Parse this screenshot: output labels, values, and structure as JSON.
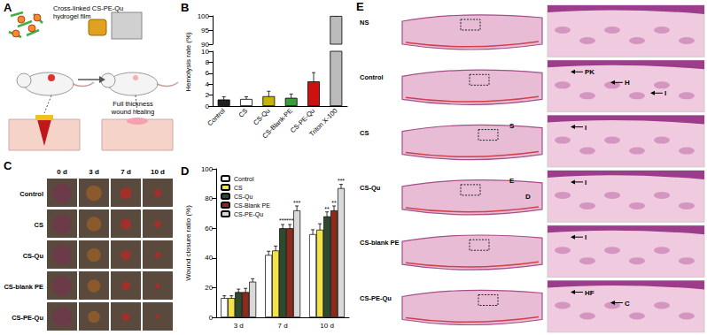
{
  "figure": {
    "A": {
      "panel_label": "A",
      "film_label": [
        "Cross-linked CS-PE-Qu",
        "hydrogel film"
      ],
      "process_label": [
        "Full thickness",
        "wound healing"
      ]
    },
    "C": {
      "panel_label": "C",
      "columns": [
        "0 d",
        "3 d",
        "7 d",
        "10 d"
      ],
      "rows": [
        "Control",
        "CS",
        "CS-Qu",
        "CS-blank PE",
        "CS-PE-Qu"
      ]
    },
    "E": {
      "panel_label": "E",
      "rows": [
        {
          "name": "NS"
        },
        {
          "name": "Control",
          "zoom_annotations": [
            "PK",
            "H",
            "I"
          ]
        },
        {
          "name": "CS",
          "left_annotations": [
            "S"
          ],
          "zoom_annotations": [
            "I"
          ]
        },
        {
          "name": "CS-Qu",
          "left_annotations": [
            "E",
            "D"
          ],
          "zoom_annotations": [
            "I"
          ]
        },
        {
          "name": "CS-blank PE",
          "zoom_annotations": [
            "I"
          ]
        },
        {
          "name": "CS-PE-Qu",
          "zoom_annotations": [
            "HF",
            "C"
          ]
        }
      ]
    }
  },
  "chart_data": [
    {
      "panel_label": "B",
      "type": "bar",
      "y_label": "Hemolysis rate (%)",
      "categories": [
        "Control",
        "CS",
        "CS-Qu",
        "CS-Blank-PE",
        "CS-PE-Qu",
        "Triton X-100"
      ],
      "values": [
        1.2,
        1.3,
        1.8,
        1.5,
        4.5,
        100
      ],
      "errors": [
        0.5,
        0.4,
        0.9,
        0.7,
        1.6,
        0
      ],
      "colors": [
        "#222222",
        "#ffffff",
        "#c8b400",
        "#3a9e3a",
        "#cc1111",
        "#bbbbbb"
      ],
      "ylim": [
        0,
        100
      ],
      "axis_break": [
        10,
        90
      ],
      "yticks": [
        0,
        2,
        4,
        6,
        8,
        10,
        90,
        95,
        100
      ]
    },
    {
      "panel_label": "D",
      "type": "bar",
      "y_label": "Wound closure ratio (%)",
      "categories": [
        "3 d",
        "7 d",
        "10 d"
      ],
      "series": [
        {
          "name": "Control",
          "color": "#ffffff",
          "values": [
            13,
            42,
            56
          ],
          "errors": [
            1.5,
            2.5,
            3
          ],
          "significance": [
            null,
            null,
            null
          ]
        },
        {
          "name": "CS",
          "color": "#f2e34a",
          "values": [
            13,
            45,
            59
          ],
          "errors": [
            1.5,
            3,
            4
          ],
          "significance": [
            null,
            null,
            null
          ]
        },
        {
          "name": "CS-Qu",
          "color": "#2e4a2e",
          "values": [
            17,
            60,
            68
          ],
          "errors": [
            2,
            2.5,
            3
          ],
          "significance": [
            null,
            "***",
            "**"
          ]
        },
        {
          "name": "CS-Blank PE",
          "color": "#8b2b1c",
          "values": [
            17,
            60,
            72
          ],
          "errors": [
            2.5,
            2.5,
            3
          ],
          "significance": [
            null,
            "***",
            "**"
          ]
        },
        {
          "name": "CS-PE-Qu",
          "color": "#d9d9d9",
          "values": [
            24,
            72,
            87
          ],
          "errors": [
            2,
            3,
            2.5
          ],
          "significance": [
            null,
            "***",
            "***"
          ]
        }
      ],
      "ylim": [
        0,
        100
      ],
      "yticks": [
        0,
        20,
        40,
        60,
        80,
        100
      ],
      "legend": "top-left"
    }
  ]
}
